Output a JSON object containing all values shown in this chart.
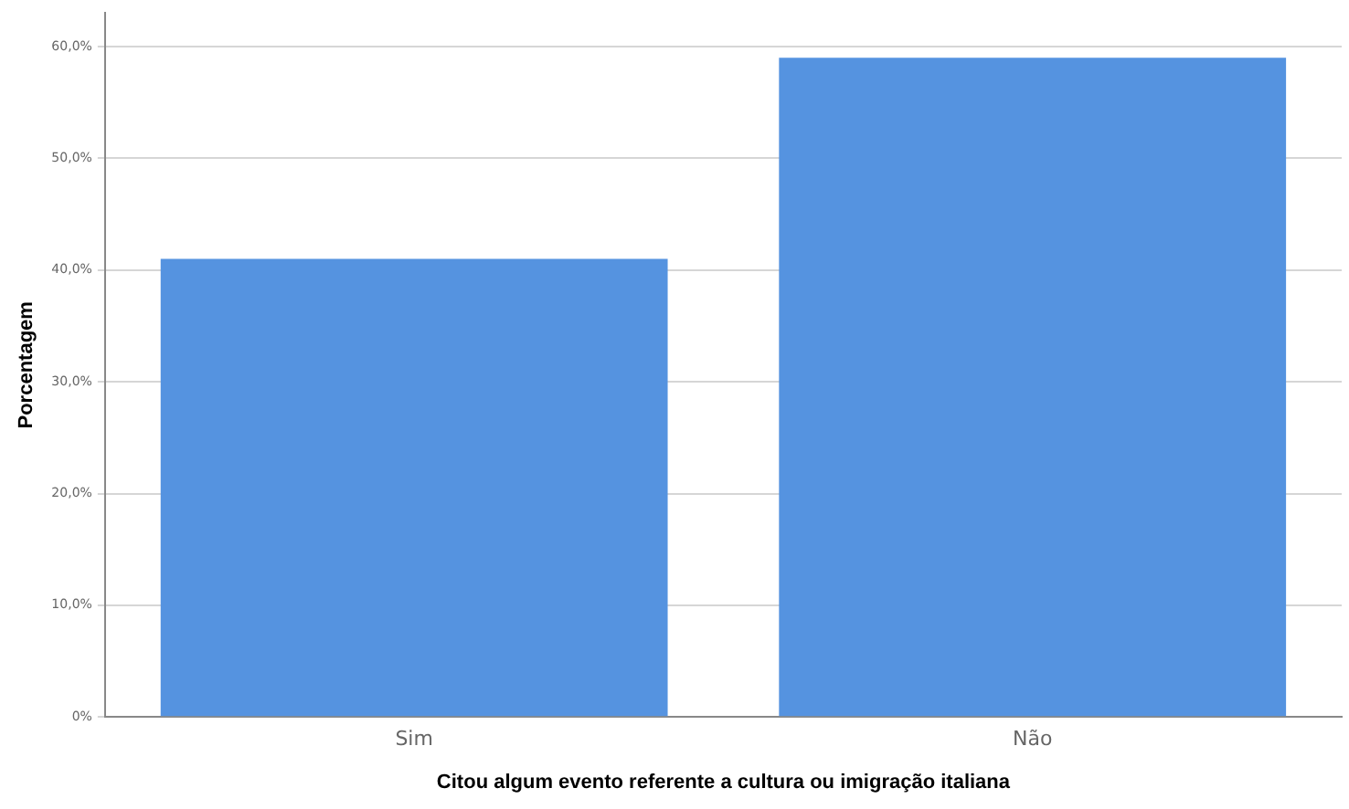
{
  "chart_data": {
    "type": "bar",
    "xlabel": "Citou algum evento referente a cultura ou imigração italiana",
    "ylabel": "Porcentagem",
    "categories": [
      "Sim",
      "Não"
    ],
    "values": [
      41,
      59
    ],
    "color": "#5593e0",
    "ylim": [
      0,
      63
    ],
    "yticks": [
      {
        "value": 0,
        "label": "0%"
      },
      {
        "value": 10,
        "label": "10,0%"
      },
      {
        "value": 20,
        "label": "20,0%"
      },
      {
        "value": 30,
        "label": "30,0%"
      },
      {
        "value": 40,
        "label": "40,0%"
      },
      {
        "value": 50,
        "label": "50,0%"
      },
      {
        "value": 60,
        "label": "60,0%"
      }
    ],
    "grid": "y"
  }
}
